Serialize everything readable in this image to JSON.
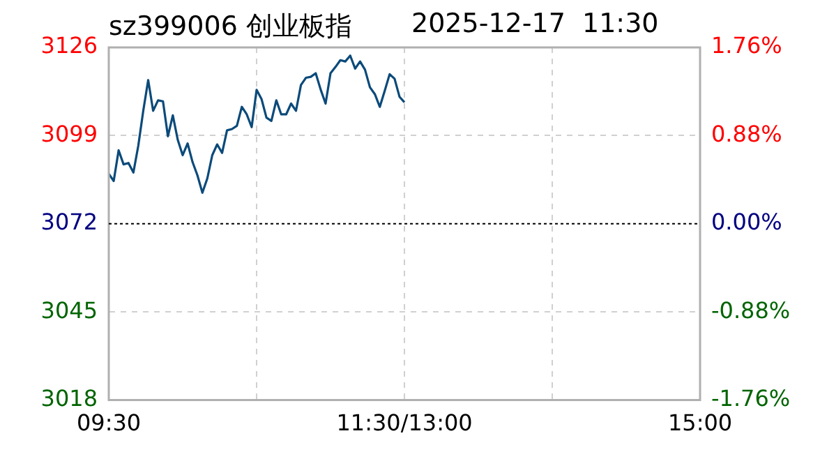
{
  "chart_data": {
    "type": "line",
    "title": "sz399006 创业板指",
    "subtitle": "2025-12-17  11:30",
    "categories": [
      "09:30",
      null,
      null,
      null,
      null,
      null,
      null,
      null,
      null,
      null,
      null,
      null,
      null,
      null,
      null,
      null,
      null,
      null,
      null,
      null,
      null,
      null,
      null,
      null,
      null,
      null,
      null,
      null,
      null,
      null,
      null,
      null,
      null,
      null,
      null,
      null,
      null,
      null,
      null,
      null,
      null,
      null,
      null,
      null,
      null,
      null,
      null,
      null,
      null,
      null,
      null,
      null,
      null,
      null,
      null,
      null,
      null,
      null,
      null,
      null,
      "11:30/13:00",
      null,
      null,
      null,
      null,
      null,
      null,
      null,
      null,
      null,
      null,
      null,
      null,
      null,
      null,
      null,
      null,
      null,
      null,
      null,
      null,
      null,
      null,
      null,
      null,
      null,
      null,
      null,
      null,
      null,
      null,
      null,
      null,
      null,
      null,
      null,
      null,
      null,
      null,
      null,
      null,
      null,
      null,
      null,
      null,
      null,
      null,
      null,
      null,
      null,
      null,
      null,
      null,
      null,
      null,
      null,
      null,
      null,
      null,
      null,
      "15:00"
    ],
    "series": [
      {
        "color": "#0b4a7a",
        "values": [
          3087.3,
          3085.1,
          3094.5,
          3090.2,
          3090.6,
          3087.7,
          3096,
          3106.6,
          3116,
          3106.6,
          3109.8,
          3109.5,
          3098.8,
          3105.2,
          3097.7,
          3093,
          3096.6,
          3090.9,
          3086.8,
          3081.5,
          3085.9,
          3093,
          3096.3,
          3093.7,
          3100.6,
          3101,
          3102,
          3107.8,
          3105.5,
          3101.6,
          3113,
          3110.2,
          3104.5,
          3103.5,
          3109.8,
          3105.5,
          3105.5,
          3108.8,
          3106.6,
          3114.5,
          3116.7,
          3117,
          3118.1,
          3113.1,
          3108.8,
          3118.1,
          3120,
          3122.1,
          3121.7,
          3123.5,
          3119.5,
          3121.7,
          3119.2,
          3113.8,
          3111.7,
          3107.8,
          3112.7,
          3117.8,
          3116.4,
          3110.9,
          3109.2,
          null,
          null,
          null,
          null,
          null,
          null,
          null,
          null,
          null,
          null,
          null,
          null,
          null,
          null,
          null,
          null,
          null,
          null,
          null,
          null,
          null,
          null,
          null,
          null,
          null,
          null,
          null,
          null,
          null,
          null,
          null,
          null,
          null,
          null,
          null,
          null,
          null,
          null,
          null,
          null,
          null,
          null,
          null,
          null,
          null,
          null,
          null,
          null,
          null,
          null,
          null,
          null,
          null,
          null,
          null,
          null,
          null,
          null,
          null,
          null
        ]
      }
    ],
    "ylim": [
      3018,
      3126
    ],
    "yticks": [
      3018,
      3045,
      3072,
      3099,
      3126
    ],
    "y2lim": [
      -1.76,
      1.76
    ],
    "y2ticks": [
      {
        "value": -1.76,
        "label": "-1.76%"
      },
      {
        "value": -0.88,
        "label": "-0.88%"
      },
      {
        "value": 0,
        "label": "0.00%"
      },
      {
        "value": 0.88,
        "label": "0.88%"
      },
      {
        "value": 1.76,
        "label": "1.76%"
      }
    ],
    "ref_lines": [
      {
        "axis": "y",
        "value": 3072,
        "color": "#000000",
        "line_style": "dotted"
      }
    ],
    "grid": true,
    "legend": false,
    "marker": "none",
    "line_style": "solid"
  }
}
